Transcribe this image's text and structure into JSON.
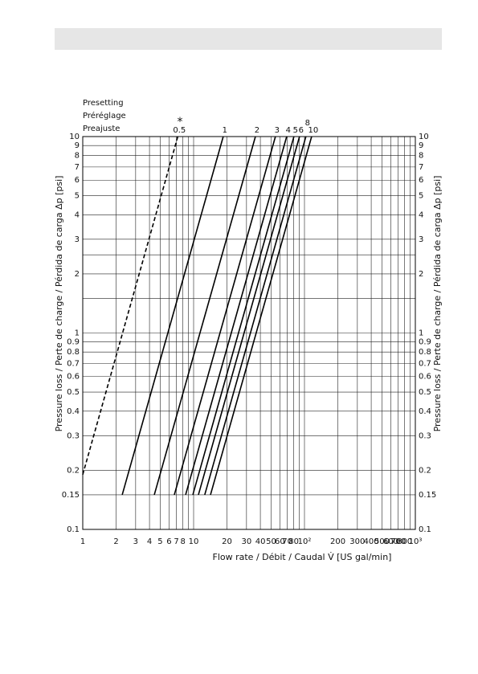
{
  "chart_data": {
    "type": "line",
    "legend_title": [
      "Presetting",
      "Préréglage",
      "Preajuste"
    ],
    "annotation": "*",
    "x_label": "Flow rate / Débit / Caudal V̇ [US gal/min]",
    "y_label": "Pressure loss / Perte de charge / Pérdida de carga Δp [psi]",
    "log_x": true,
    "log_y": true,
    "grid": true,
    "xlim": [
      1,
      1000
    ],
    "ylim": [
      0.1,
      10
    ],
    "xticks": [
      1,
      2,
      3,
      4,
      5,
      6,
      7,
      8,
      {
        "value": 9,
        "label": null
      },
      10,
      20,
      30,
      40,
      50,
      60,
      70,
      80,
      {
        "value": 90,
        "label": null
      },
      {
        "value": 100,
        "label": "10²"
      },
      200,
      300,
      400,
      500,
      600,
      700,
      800,
      {
        "value": 900,
        "label": null
      },
      {
        "value": 1000,
        "label": "10³"
      }
    ],
    "yticks": [
      0.1,
      0.15,
      0.2,
      0.3,
      0.4,
      0.5,
      0.6,
      0.7,
      0.8,
      0.9,
      1,
      {
        "value": 1.5,
        "label": null
      },
      2,
      {
        "value": 2.5,
        "label": null
      },
      3,
      4,
      5,
      6,
      7,
      8,
      9,
      10
    ],
    "series": [
      {
        "name": "0.5",
        "color": "#000",
        "dashed": true,
        "x": [
          1,
          7.2
        ],
        "values": [
          0.19,
          10
        ]
      },
      {
        "name": "1",
        "color": "#000",
        "x": [
          2.27,
          18.5
        ],
        "values": [
          0.15,
          10
        ]
      },
      {
        "name": "2",
        "color": "#000",
        "x": [
          4.42,
          36.1
        ],
        "values": [
          0.15,
          10
        ]
      },
      {
        "name": "3",
        "color": "#000",
        "x": [
          6.7,
          54.7
        ],
        "values": [
          0.15,
          10
        ]
      },
      {
        "name": "4",
        "color": "#000",
        "x": [
          8.47,
          69.1
        ],
        "values": [
          0.15,
          10
        ]
      },
      {
        "name": "5",
        "color": "#000",
        "x": [
          9.84,
          80.3
        ],
        "values": [
          0.15,
          10
        ]
      },
      {
        "name": "6",
        "color": "#000",
        "x": [
          11.05,
          90.2
        ],
        "values": [
          0.15,
          10
        ]
      },
      {
        "name": "8",
        "color": "#000",
        "x": [
          12.6,
          103
        ],
        "values": [
          0.15,
          10
        ]
      },
      {
        "name": "10",
        "color": "#000",
        "x": [
          14.2,
          116
        ],
        "values": [
          0.15,
          10
        ]
      }
    ]
  }
}
